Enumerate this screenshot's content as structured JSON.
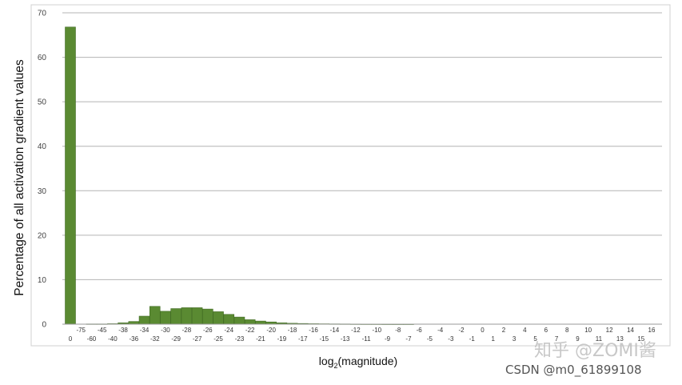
{
  "chart_data": {
    "type": "bar",
    "ylabel": "Percentage of all activation gradient values",
    "xlabel_main": "log",
    "xlabel_sub": "2",
    "xlabel_tail": "(magnitude)",
    "ylim": [
      0,
      70
    ],
    "yticks": [
      0,
      10,
      20,
      30,
      40,
      50,
      60,
      70
    ],
    "grid": true,
    "bar_color": "#5a8a32",
    "categories": [
      "0",
      "-75",
      "-60",
      "-45",
      "-40",
      "-38",
      "-36",
      "-34",
      "-32",
      "-30",
      "-29",
      "-28",
      "-27",
      "-26",
      "-25",
      "-24",
      "-23",
      "-22",
      "-21",
      "-20",
      "-19",
      "-18",
      "-17",
      "-16",
      "-15",
      "-14",
      "-13",
      "-12",
      "-11",
      "-10",
      "-9",
      "-8",
      "-7",
      "-6",
      "-5",
      "-4",
      "-3",
      "-2",
      "-1",
      "0",
      "1",
      "2",
      "3",
      "4",
      "5",
      "6",
      "7",
      "8",
      "9",
      "10",
      "11",
      "12",
      "13",
      "14",
      "15",
      "16"
    ],
    "values": [
      66.8,
      0,
      0.05,
      0.05,
      0.1,
      0.3,
      0.6,
      1.8,
      4.0,
      2.9,
      3.5,
      3.7,
      3.7,
      3.4,
      2.8,
      2.2,
      1.6,
      1.0,
      0.7,
      0.5,
      0.3,
      0.2,
      0.15,
      0.1,
      0.08,
      0.06,
      0.05,
      0.04,
      0.03,
      0.03,
      0.02,
      0.02,
      0.02,
      0,
      0,
      0,
      0,
      0,
      0,
      0,
      0,
      0,
      0,
      0,
      0,
      0,
      0,
      0,
      0,
      0,
      0,
      0,
      0,
      0,
      0,
      0
    ]
  },
  "watermarks": {
    "zhihu": "知乎 @ZOMI酱",
    "csdn": "CSDN @m0_61899108"
  }
}
